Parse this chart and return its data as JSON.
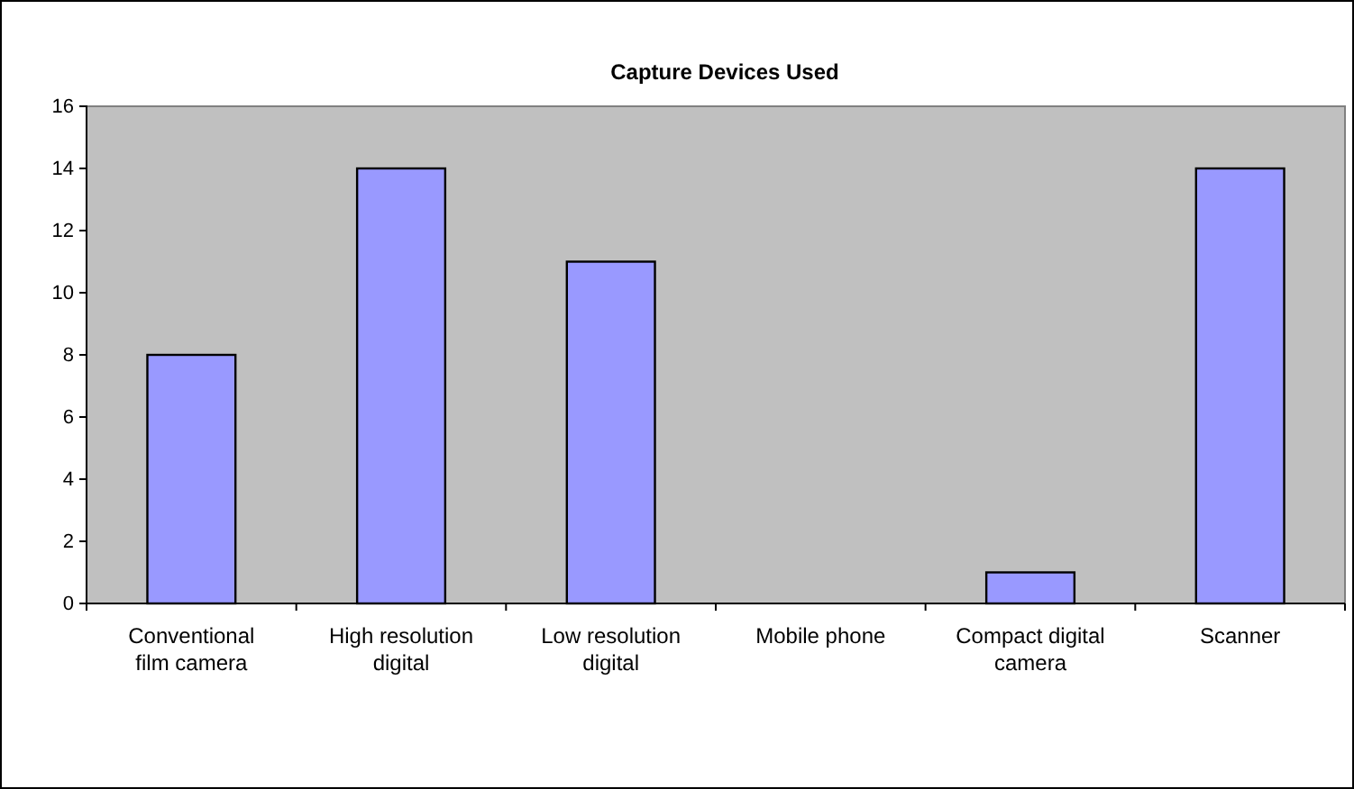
{
  "chart_data": {
    "type": "bar",
    "title": "Capture Devices Used",
    "categories": [
      "Conventional film camera",
      "High resolution digital",
      "Low resolution digital",
      "Mobile phone",
      "Compact digital camera",
      "Scanner"
    ],
    "values": [
      8,
      14,
      11,
      0,
      1,
      14
    ],
    "color": "#9999ff",
    "ylim": [
      0,
      16
    ],
    "yticks": [
      0,
      2,
      4,
      6,
      8,
      10,
      12,
      14,
      16
    ],
    "grid": false
  }
}
